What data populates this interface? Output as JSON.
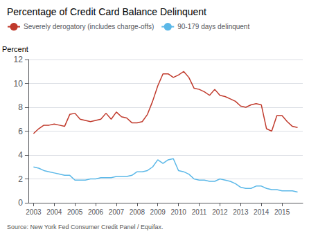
{
  "chart_data": {
    "type": "line",
    "title": "Percentage of Credit Card Balance Delinquent",
    "ylabel": "Percent",
    "source": "Source: New York Fed Consumer Credit Panel / Equifax.",
    "x": [
      2003.0,
      2003.25,
      2003.5,
      2003.75,
      2004.0,
      2004.25,
      2004.5,
      2004.75,
      2005.0,
      2005.25,
      2005.5,
      2005.75,
      2006.0,
      2006.25,
      2006.5,
      2006.75,
      2007.0,
      2007.25,
      2007.5,
      2007.75,
      2008.0,
      2008.25,
      2008.5,
      2008.75,
      2009.0,
      2009.25,
      2009.5,
      2009.75,
      2010.0,
      2010.25,
      2010.5,
      2010.75,
      2011.0,
      2011.25,
      2011.5,
      2011.75,
      2012.0,
      2012.25,
      2012.5,
      2012.75,
      2013.0,
      2013.25,
      2013.5,
      2013.75,
      2014.0,
      2014.25,
      2014.5,
      2014.75,
      2015.0,
      2015.25,
      2015.5,
      2015.75
    ],
    "series": [
      {
        "name": "Severely derogatory (includes charge-offs)",
        "color": "#c0392b",
        "values": [
          5.8,
          6.2,
          6.5,
          6.5,
          6.6,
          6.5,
          6.4,
          7.4,
          7.5,
          7.0,
          6.9,
          6.8,
          6.9,
          7.0,
          7.5,
          7.0,
          7.6,
          7.2,
          7.1,
          6.7,
          6.7,
          6.8,
          7.4,
          8.5,
          9.8,
          10.8,
          10.8,
          10.5,
          10.7,
          11.0,
          10.5,
          9.6,
          9.5,
          9.3,
          9.0,
          9.5,
          9.0,
          8.9,
          8.7,
          8.5,
          8.1,
          8.0,
          8.2,
          8.3,
          8.2,
          6.2,
          6.0,
          7.3,
          7.3,
          6.8,
          6.4,
          6.3
        ]
      },
      {
        "name": "90-179 days delinquent",
        "color": "#5bb8e8",
        "values": [
          3.0,
          2.9,
          2.7,
          2.6,
          2.5,
          2.4,
          2.3,
          2.3,
          1.9,
          1.9,
          1.9,
          2.0,
          2.0,
          2.1,
          2.1,
          2.1,
          2.2,
          2.2,
          2.2,
          2.3,
          2.6,
          2.6,
          2.7,
          3.0,
          3.6,
          3.3,
          3.6,
          3.7,
          2.7,
          2.6,
          2.4,
          2.0,
          1.9,
          1.9,
          1.8,
          1.8,
          2.0,
          1.9,
          1.8,
          1.6,
          1.3,
          1.2,
          1.2,
          1.4,
          1.4,
          1.2,
          1.1,
          1.1,
          1.0,
          1.0,
          1.0,
          0.9
        ]
      }
    ],
    "xlim": [
      2002.75,
      2016.0
    ],
    "xticks": [
      2003,
      2004,
      2005,
      2006,
      2007,
      2008,
      2009,
      2010,
      2011,
      2012,
      2013,
      2014,
      2015
    ],
    "ylim": [
      0,
      12
    ],
    "yticks": [
      0,
      2,
      4,
      6,
      8,
      10,
      12
    ],
    "grid": true,
    "legend": "top-left"
  }
}
